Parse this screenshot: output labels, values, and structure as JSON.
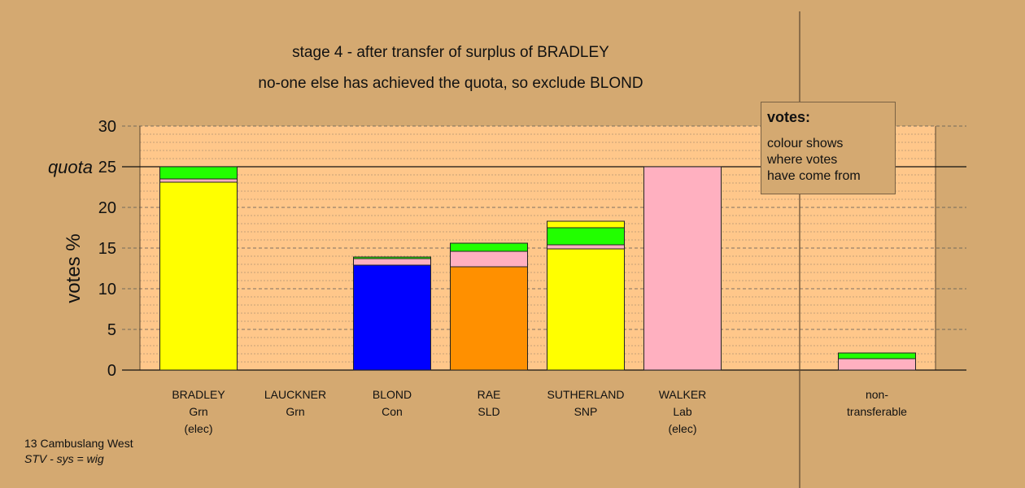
{
  "title_line1": "stage 4 - after transfer of surplus of BRADLEY",
  "title_line2": "no-one else has achieved the quota, so exclude BLOND",
  "footer": {
    "line1": "13 Cambuslang West",
    "line2": "STV - sys = wig"
  },
  "legend": {
    "title": "votes:",
    "lines": [
      "colour shows",
      "where votes",
      "have come from"
    ]
  },
  "colors": {
    "background": "#D4A971",
    "plot_bg": "#FFC78A",
    "SNP": "#FFFF00",
    "Grn": "#22FF00",
    "Con": "#0000FF",
    "SLD": "#FF9000",
    "Lab": "#FFB0C0"
  },
  "chart_data": {
    "type": "bar",
    "stacked": true,
    "ylabel": "votes %",
    "ylim": [
      0,
      30
    ],
    "yticks": [
      0,
      5,
      10,
      15,
      20,
      25,
      30
    ],
    "quota": 25,
    "quota_label": "quota",
    "grid": "dashed",
    "categories": [
      {
        "name": "BRADLEY",
        "party": "Grn",
        "note": "(elec)"
      },
      {
        "name": "LAUCKNER",
        "party": "Grn",
        "note": ""
      },
      {
        "name": "BLOND",
        "party": "Con",
        "note": ""
      },
      {
        "name": "RAE",
        "party": "SLD",
        "note": ""
      },
      {
        "name": "SUTHERLAND",
        "party": "SNP",
        "note": ""
      },
      {
        "name": "WALKER",
        "party": "Lab",
        "note": "(elec)"
      },
      {
        "name": "non-",
        "party": "transferable",
        "note": ""
      }
    ],
    "stacks": [
      [
        {
          "from": "SNP",
          "value": 23.1
        },
        {
          "from": "Lab",
          "value": 0.4
        },
        {
          "from": "Grn",
          "value": 1.5
        }
      ],
      [],
      [
        {
          "from": "Con",
          "value": 12.9
        },
        {
          "from": "Lab",
          "value": 0.8
        },
        {
          "from": "Grn",
          "value": 0.2
        }
      ],
      [
        {
          "from": "SLD",
          "value": 12.7
        },
        {
          "from": "Lab",
          "value": 1.9
        },
        {
          "from": "Grn",
          "value": 1.0
        }
      ],
      [
        {
          "from": "SNP",
          "value": 14.9
        },
        {
          "from": "Lab",
          "value": 0.5
        },
        {
          "from": "Grn",
          "value": 2.1
        },
        {
          "from": "SNP",
          "value": 0.8
        }
      ],
      [
        {
          "from": "Lab",
          "value": 25.0
        }
      ],
      [
        {
          "from": "Lab",
          "value": 1.4
        },
        {
          "from": "Grn",
          "value": 0.7
        }
      ]
    ]
  }
}
